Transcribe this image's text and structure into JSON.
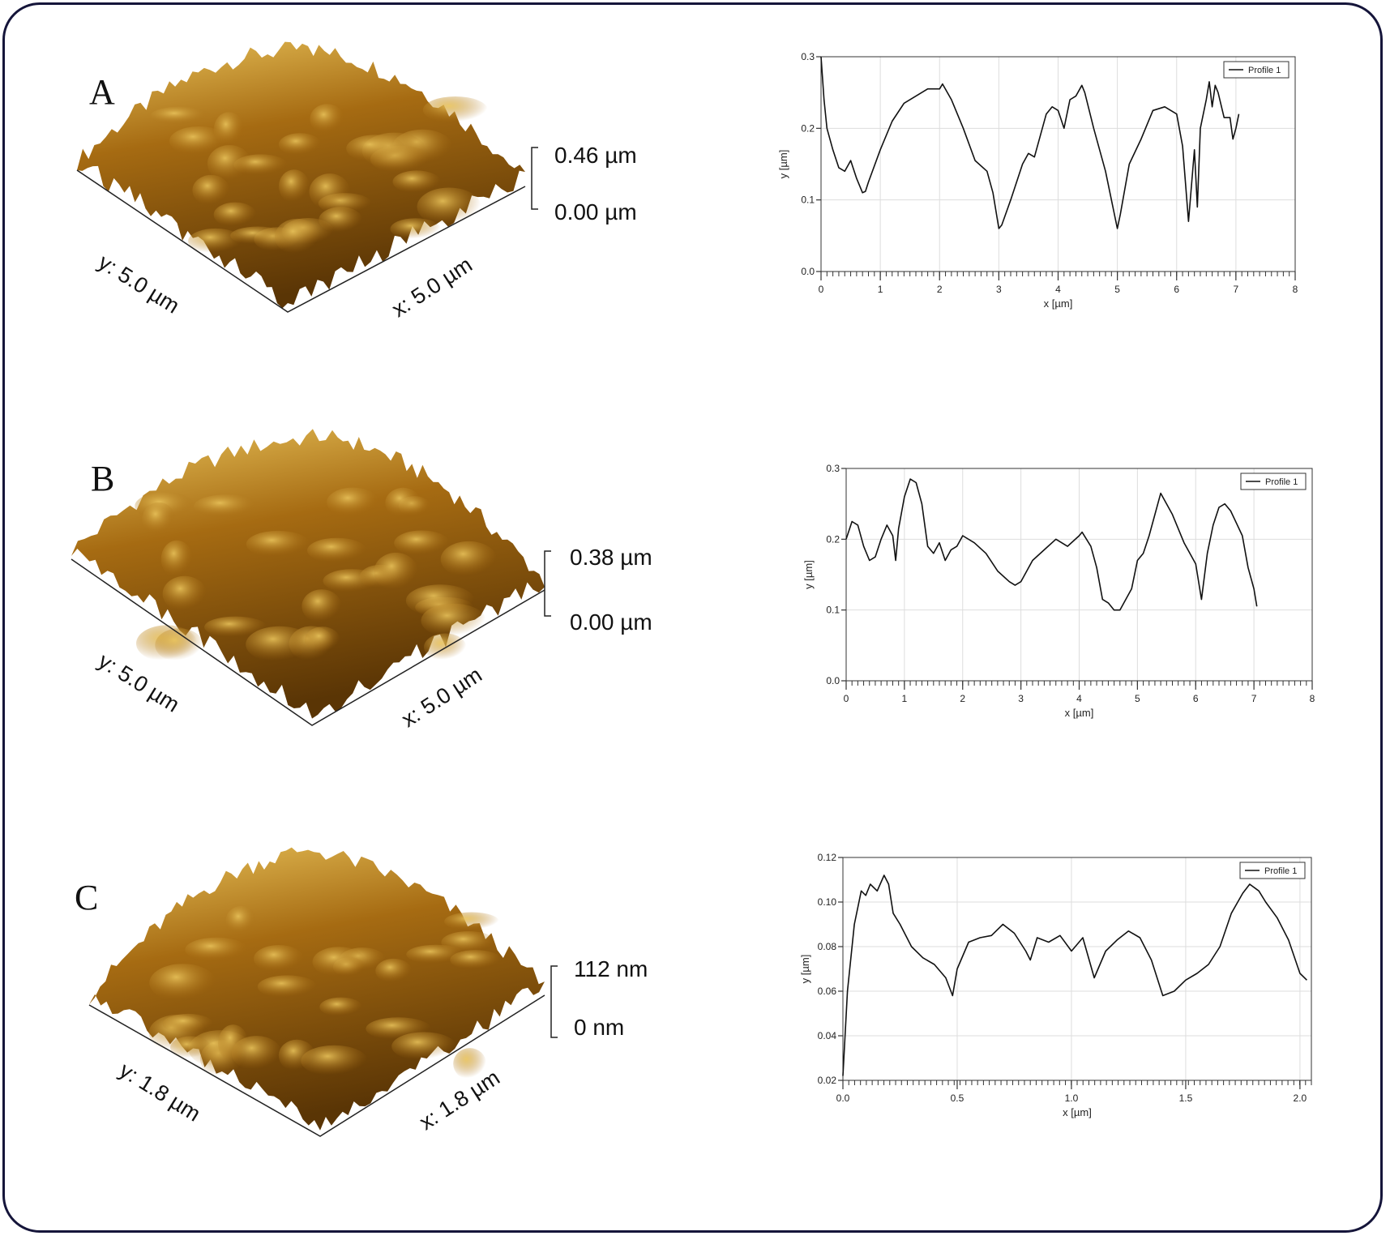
{
  "colors": {
    "frame": "#15153a",
    "surface_dark": "#5a3505",
    "surface_mid": "#a66b12",
    "surface_light": "#e8c25a",
    "line": "#111111",
    "grid": "#dddddd"
  },
  "panels": [
    {
      "id": "A",
      "letter": "A",
      "z_max": "0.46 µm",
      "z_min": "0.00 µm",
      "x_axis": "x: 5.0 µm",
      "y_axis": "y: 5.0 µm"
    },
    {
      "id": "B",
      "letter": "B",
      "z_max": "0.38 µm",
      "z_min": "0.00 µm",
      "x_axis": "x: 5.0 µm",
      "y_axis": "y: 5.0 µm"
    },
    {
      "id": "C",
      "letter": "C",
      "z_max": "112 nm",
      "z_min": "0 nm",
      "x_axis": "x: 1.8 µm",
      "y_axis": "y: 1.8 µm"
    }
  ],
  "chart_data": [
    {
      "type": "line",
      "xlabel": "x [µm]",
      "ylabel": "y [µm]",
      "legend": "Profile 1",
      "legend_position": "top-right",
      "grid": true,
      "xlim": [
        0,
        8
      ],
      "ylim": [
        0,
        0.3
      ],
      "xticks": [
        0,
        1,
        2,
        3,
        4,
        5,
        6,
        7,
        8
      ],
      "xtick_labels": [
        "0",
        "1",
        "2",
        "3",
        "4",
        "5",
        "6",
        "7",
        "8"
      ],
      "yticks": [
        0,
        0.1,
        0.2,
        0.3
      ],
      "ytick_labels": [
        "0.0",
        "0.1",
        "0.2",
        "0.3"
      ],
      "series": [
        {
          "name": "Profile 1",
          "x": [
            0,
            0.05,
            0.1,
            0.2,
            0.3,
            0.4,
            0.5,
            0.6,
            0.7,
            0.75,
            0.8,
            1.0,
            1.2,
            1.4,
            1.6,
            1.8,
            2.0,
            2.05,
            2.2,
            2.4,
            2.6,
            2.8,
            2.9,
            3.0,
            3.05,
            3.2,
            3.4,
            3.5,
            3.6,
            3.7,
            3.8,
            3.9,
            4.0,
            4.1,
            4.2,
            4.3,
            4.4,
            4.45,
            4.6,
            4.8,
            4.9,
            5.0,
            5.05,
            5.2,
            5.4,
            5.6,
            5.8,
            6.0,
            6.1,
            6.2,
            6.3,
            6.35,
            6.4,
            6.5,
            6.55,
            6.6,
            6.65,
            6.7,
            6.8,
            6.9,
            6.95,
            7.0,
            7.05
          ],
          "y": [
            0.3,
            0.24,
            0.2,
            0.17,
            0.145,
            0.14,
            0.155,
            0.13,
            0.11,
            0.112,
            0.125,
            0.17,
            0.21,
            0.235,
            0.245,
            0.255,
            0.255,
            0.262,
            0.24,
            0.2,
            0.155,
            0.14,
            0.11,
            0.06,
            0.065,
            0.1,
            0.15,
            0.165,
            0.16,
            0.19,
            0.22,
            0.23,
            0.225,
            0.2,
            0.24,
            0.245,
            0.26,
            0.25,
            0.2,
            0.14,
            0.1,
            0.06,
            0.08,
            0.15,
            0.185,
            0.225,
            0.23,
            0.22,
            0.175,
            0.07,
            0.17,
            0.09,
            0.2,
            0.24,
            0.265,
            0.23,
            0.26,
            0.25,
            0.215,
            0.215,
            0.185,
            0.2,
            0.22
          ]
        }
      ]
    },
    {
      "type": "line",
      "xlabel": "x [µm]",
      "ylabel": "y [µm]",
      "legend": "Profile 1",
      "legend_position": "top-right",
      "grid": true,
      "xlim": [
        0,
        8
      ],
      "ylim": [
        0,
        0.3
      ],
      "xticks": [
        0,
        1,
        2,
        3,
        4,
        5,
        6,
        7,
        8
      ],
      "xtick_labels": [
        "0",
        "1",
        "2",
        "3",
        "4",
        "5",
        "6",
        "7",
        "8"
      ],
      "yticks": [
        0,
        0.1,
        0.2,
        0.3
      ],
      "ytick_labels": [
        "0.0",
        "0.1",
        "0.2",
        "0.3"
      ],
      "series": [
        {
          "name": "Profile 1",
          "x": [
            0,
            0.1,
            0.2,
            0.3,
            0.4,
            0.5,
            0.6,
            0.7,
            0.8,
            0.85,
            0.9,
            1.0,
            1.1,
            1.2,
            1.3,
            1.4,
            1.5,
            1.6,
            1.7,
            1.8,
            1.9,
            2.0,
            2.2,
            2.4,
            2.6,
            2.8,
            2.9,
            3.0,
            3.1,
            3.2,
            3.4,
            3.6,
            3.8,
            4.0,
            4.05,
            4.2,
            4.3,
            4.4,
            4.5,
            4.6,
            4.7,
            4.8,
            4.9,
            5.0,
            5.1,
            5.2,
            5.4,
            5.6,
            5.8,
            5.9,
            6.0,
            6.1,
            6.2,
            6.3,
            6.4,
            6.5,
            6.6,
            6.8,
            6.9,
            7.0,
            7.05
          ],
          "y": [
            0.2,
            0.225,
            0.22,
            0.19,
            0.17,
            0.175,
            0.2,
            0.22,
            0.205,
            0.17,
            0.215,
            0.26,
            0.285,
            0.28,
            0.25,
            0.19,
            0.18,
            0.195,
            0.17,
            0.185,
            0.19,
            0.205,
            0.195,
            0.18,
            0.155,
            0.14,
            0.135,
            0.14,
            0.155,
            0.17,
            0.185,
            0.2,
            0.19,
            0.205,
            0.21,
            0.19,
            0.16,
            0.115,
            0.11,
            0.1,
            0.1,
            0.115,
            0.13,
            0.17,
            0.18,
            0.205,
            0.265,
            0.235,
            0.195,
            0.18,
            0.165,
            0.115,
            0.18,
            0.22,
            0.245,
            0.25,
            0.24,
            0.205,
            0.16,
            0.13,
            0.105
          ]
        }
      ]
    },
    {
      "type": "line",
      "xlabel": "x [µm]",
      "ylabel": "y [µm]",
      "legend": "Profile 1",
      "legend_position": "top-right",
      "grid": true,
      "xlim": [
        0,
        2.05
      ],
      "ylim": [
        0.02,
        0.12
      ],
      "xticks": [
        0,
        0.5,
        1.0,
        1.5,
        2.0
      ],
      "xtick_labels": [
        "0.0",
        "0.5",
        "1.0",
        "1.5",
        "2.0"
      ],
      "yticks": [
        0.02,
        0.04,
        0.06,
        0.08,
        0.1,
        0.12
      ],
      "ytick_labels": [
        "0.02",
        "0.04",
        "0.06",
        "0.08",
        "0.10",
        "0.12"
      ],
      "series": [
        {
          "name": "Profile 1",
          "x": [
            0,
            0.02,
            0.05,
            0.08,
            0.1,
            0.12,
            0.15,
            0.18,
            0.2,
            0.22,
            0.25,
            0.3,
            0.35,
            0.4,
            0.45,
            0.48,
            0.5,
            0.55,
            0.6,
            0.65,
            0.7,
            0.75,
            0.8,
            0.82,
            0.85,
            0.9,
            0.95,
            1.0,
            1.05,
            1.1,
            1.15,
            1.2,
            1.25,
            1.3,
            1.35,
            1.4,
            1.45,
            1.5,
            1.55,
            1.6,
            1.65,
            1.7,
            1.75,
            1.78,
            1.82,
            1.85,
            1.9,
            1.95,
            2.0,
            2.03
          ],
          "y": [
            0.022,
            0.06,
            0.09,
            0.105,
            0.103,
            0.108,
            0.105,
            0.112,
            0.108,
            0.095,
            0.09,
            0.08,
            0.075,
            0.072,
            0.066,
            0.058,
            0.07,
            0.082,
            0.084,
            0.085,
            0.09,
            0.086,
            0.078,
            0.074,
            0.084,
            0.082,
            0.085,
            0.078,
            0.084,
            0.066,
            0.078,
            0.083,
            0.087,
            0.084,
            0.074,
            0.058,
            0.06,
            0.065,
            0.068,
            0.072,
            0.08,
            0.095,
            0.104,
            0.108,
            0.105,
            0.1,
            0.093,
            0.083,
            0.068,
            0.065
          ]
        }
      ]
    }
  ]
}
